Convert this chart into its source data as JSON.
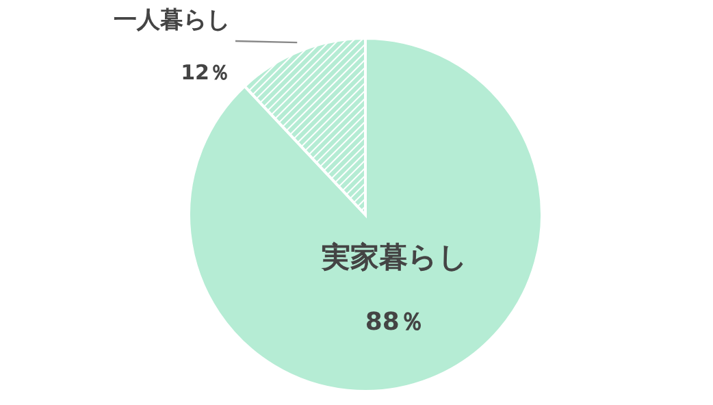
{
  "chart_data": {
    "type": "pie",
    "categories": [
      "実家暮らし",
      "一人暮らし"
    ],
    "values": [
      88,
      12
    ],
    "colors": [
      "#b5ecd4",
      "#b5ecd4"
    ],
    "value_labels": [
      "88％",
      "12％"
    ]
  }
}
